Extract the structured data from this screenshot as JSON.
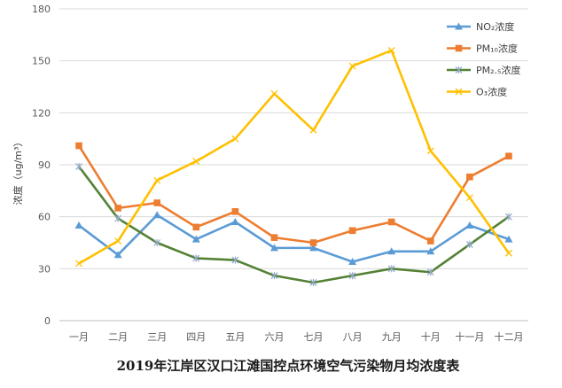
{
  "chart_data": {
    "type": "line",
    "title": "2019年江岸区汉口江滩国控点环境空气污染物月均浓度表",
    "ylabel": "浓度（ug/m³）",
    "xlabel": "",
    "ylim": [
      0,
      180
    ],
    "yticks": [
      0,
      30,
      60,
      90,
      120,
      150,
      180
    ],
    "grid": true,
    "legend_position": "top-right",
    "categories": [
      "一月",
      "二月",
      "三月",
      "四月",
      "五月",
      "六月",
      "七月",
      "八月",
      "九月",
      "十月",
      "十一月",
      "十二月"
    ],
    "series": [
      {
        "name": "NO₂浓度",
        "color": "#5b9bd5",
        "marker": "triangle",
        "values": [
          55,
          38,
          61,
          47,
          57,
          42,
          42,
          34,
          40,
          40,
          55,
          47
        ]
      },
      {
        "name": "PM₁₀浓度",
        "color": "#ed7d31",
        "marker": "square",
        "values": [
          101,
          65,
          68,
          54,
          63,
          48,
          45,
          52,
          57,
          46,
          83,
          95
        ]
      },
      {
        "name": "PM₂.₅浓度",
        "color": "#548235",
        "marker": "star",
        "values": [
          89,
          59,
          45,
          36,
          35,
          26,
          22,
          26,
          30,
          28,
          44,
          60
        ]
      },
      {
        "name": "O₃浓度",
        "color": "#ffc000",
        "marker": "x",
        "values": [
          33,
          46,
          81,
          92,
          105,
          131,
          110,
          147,
          156,
          98,
          71,
          39
        ]
      }
    ]
  }
}
